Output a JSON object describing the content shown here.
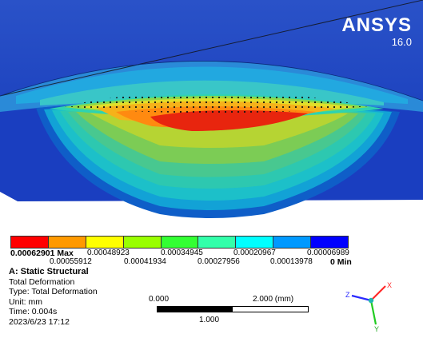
{
  "brand": {
    "name": "ANSYS",
    "version": "16.0"
  },
  "legend": {
    "colors": [
      "#ff0000",
      "#ff9900",
      "#ffff00",
      "#99ff00",
      "#33ff33",
      "#33ffaa",
      "#00ffff",
      "#0099ff",
      "#0000ff"
    ],
    "top_labels": [
      "0.00062901 Max",
      "0.00048923",
      "0.00034945",
      "0.00020967",
      "0.00006989"
    ],
    "bottom_labels": [
      "0.00055912",
      "0.00041934",
      "0.00027956",
      "0.00013978",
      "0 Min"
    ]
  },
  "info": {
    "title": "A: Static Structural",
    "result": "Total Deformation",
    "type": "Type: Total Deformation",
    "unit": "Unit: mm",
    "time": "Time: 0.004s",
    "date": "2023/6/23 17:12"
  },
  "scale": {
    "left": "0.000",
    "right": "2.000 (mm)",
    "mid": "1.000"
  },
  "triad": {
    "x": "X",
    "y": "Y",
    "z": "Z"
  }
}
